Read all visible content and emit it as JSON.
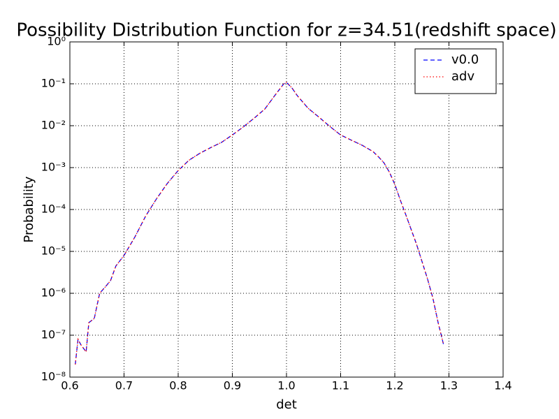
{
  "chart_data": {
    "type": "line",
    "title": "Possibility Distribution Function for z=34.51(redshift space)",
    "x_label": "det",
    "y_label": "Probability",
    "log_y": true,
    "grid": true,
    "legend": "upper right",
    "xlim": [
      0.6,
      1.4
    ],
    "ylim": [
      1e-08,
      1
    ],
    "xticks": [
      0.6,
      0.7,
      0.8,
      0.9,
      {
        "value": 1,
        "label": "1.0"
      },
      1.1,
      1.2,
      1.3,
      1.4
    ],
    "yticks": [
      {
        "value": 1e-08,
        "label": "10⁻⁸"
      },
      {
        "value": 1e-07,
        "label": "10⁻⁷"
      },
      {
        "value": 1e-06,
        "label": "10⁻⁶"
      },
      {
        "value": 1e-05,
        "label": "10⁻⁵"
      },
      {
        "value": 0.0001,
        "label": "10⁻⁴"
      },
      {
        "value": 0.001,
        "label": "10⁻³"
      },
      {
        "value": 0.01,
        "label": "10⁻²"
      },
      {
        "value": 0.1,
        "label": "10⁻¹"
      },
      {
        "value": 1,
        "label": "10⁰"
      }
    ],
    "x": [
      0.61,
      0.615,
      0.62,
      0.63,
      0.635,
      0.645,
      0.655,
      0.665,
      0.675,
      0.685,
      0.7,
      0.72,
      0.74,
      0.76,
      0.78,
      0.8,
      0.82,
      0.84,
      0.86,
      0.88,
      0.9,
      0.92,
      0.94,
      0.96,
      0.98,
      0.995,
      1.0,
      1.01,
      1.02,
      1.04,
      1.06,
      1.08,
      1.1,
      1.12,
      1.14,
      1.16,
      1.17,
      1.18,
      1.19,
      1.2,
      1.21,
      1.22,
      1.24,
      1.26,
      1.27,
      1.28,
      1.29
    ],
    "series": [
      {
        "name": "v0.0",
        "color": "#0000ff",
        "dash": "dashed",
        "values": [
          2e-08,
          8e-08,
          6e-08,
          4e-08,
          2e-07,
          2.5e-07,
          1e-06,
          1.4e-06,
          2e-06,
          4.5e-06,
          8e-06,
          2.2e-05,
          7e-05,
          0.00018,
          0.00042,
          0.00085,
          0.0015,
          0.0022,
          0.003,
          0.004,
          0.006,
          0.0093,
          0.015,
          0.025,
          0.056,
          0.1,
          0.108,
          0.08,
          0.052,
          0.026,
          0.016,
          0.0096,
          0.006,
          0.0045,
          0.0034,
          0.0024,
          0.0018,
          0.0013,
          0.00078,
          0.0004,
          0.00017,
          7.7e-05,
          1.5e-05,
          2.3e-06,
          8e-07,
          2e-07,
          6e-08
        ]
      },
      {
        "name": "adv",
        "color": "#ff0000",
        "dash": "dotted",
        "values": [
          2e-08,
          8e-08,
          6e-08,
          4e-08,
          2e-07,
          2.5e-07,
          1e-06,
          1.4e-06,
          2e-06,
          4.5e-06,
          8e-06,
          2.2e-05,
          7e-05,
          0.00018,
          0.00042,
          0.00085,
          0.0015,
          0.0022,
          0.003,
          0.004,
          0.006,
          0.0093,
          0.015,
          0.025,
          0.056,
          0.1,
          0.108,
          0.08,
          0.052,
          0.026,
          0.016,
          0.0096,
          0.006,
          0.0045,
          0.0034,
          0.0024,
          0.0018,
          0.0013,
          0.00078,
          0.0004,
          0.00017,
          7.7e-05,
          1.5e-05,
          2.3e-06,
          8e-07,
          2e-07,
          6e-08
        ]
      }
    ]
  }
}
